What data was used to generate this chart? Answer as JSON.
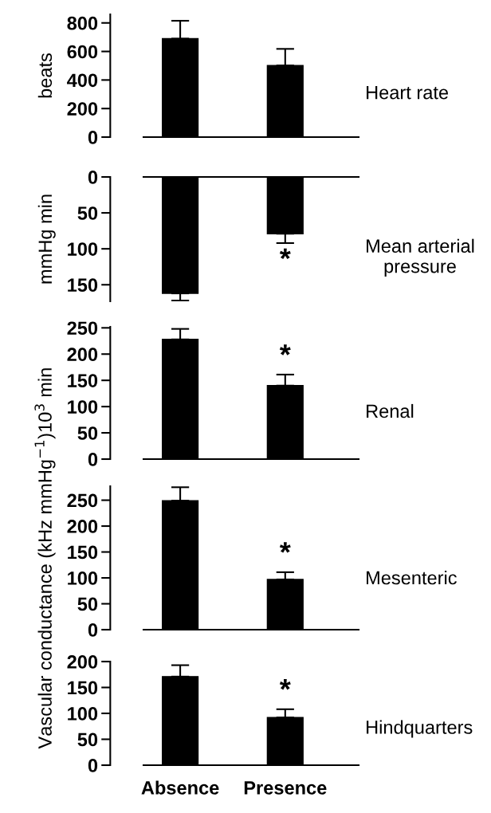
{
  "chart_data": [
    {
      "type": "bar",
      "title": "Heart rate",
      "ylabel": "beats",
      "categories": [
        null,
        null
      ],
      "values": [
        690,
        502
      ],
      "color": "#000000",
      "errors": [
        [
          690,
          815
        ],
        [
          502,
          618
        ]
      ],
      "ylim": [
        0,
        860
      ],
      "yticks": [
        0,
        200,
        400,
        600,
        800
      ]
    },
    {
      "type": "bar",
      "title": "Mean arterial\npressure",
      "ylabel": "mmHg min",
      "categories": [
        null,
        null
      ],
      "values": [
        162,
        79
      ],
      "color": "#000000",
      "errors": [
        [
          162,
          172
        ],
        [
          79,
          92
        ]
      ],
      "ylim": [
        173,
        0
      ],
      "yticks": [
        0,
        50,
        100,
        150
      ],
      "annotations": [
        "*"
      ]
    },
    {
      "type": "bar",
      "title": "Renal",
      "categories": [
        null,
        null
      ],
      "values": [
        228,
        140
      ],
      "color": "#000000",
      "errors": [
        [
          228,
          248
        ],
        [
          140,
          161
        ]
      ],
      "ylim": [
        0,
        252
      ],
      "yticks": [
        0,
        50,
        100,
        150,
        200,
        250
      ],
      "annotations": [
        "*"
      ]
    },
    {
      "type": "bar",
      "title": "Mesenteric",
      "ylabel": "Vascular conductance (kHz mmHg$^{−1}$)10$^{3}$ min",
      "categories": [
        null,
        null
      ],
      "values": [
        249,
        97
      ],
      "color": "#000000",
      "errors": [
        [
          249,
          275
        ],
        [
          97,
          111
        ]
      ],
      "ylim": [
        0,
        277
      ],
      "yticks": [
        0,
        50,
        100,
        150,
        200,
        250
      ],
      "annotations": [
        "*"
      ]
    },
    {
      "type": "bar",
      "title": "Hindquarters",
      "categories": [
        "Absence",
        "Presence"
      ],
      "values": [
        171,
        92
      ],
      "color": "#000000",
      "errors": [
        [
          171,
          193
        ],
        [
          92,
          108
        ]
      ],
      "ylim": [
        0,
        200
      ],
      "yticks": [
        0,
        50,
        100,
        150,
        200
      ],
      "annotations": [
        "*"
      ]
    }
  ]
}
